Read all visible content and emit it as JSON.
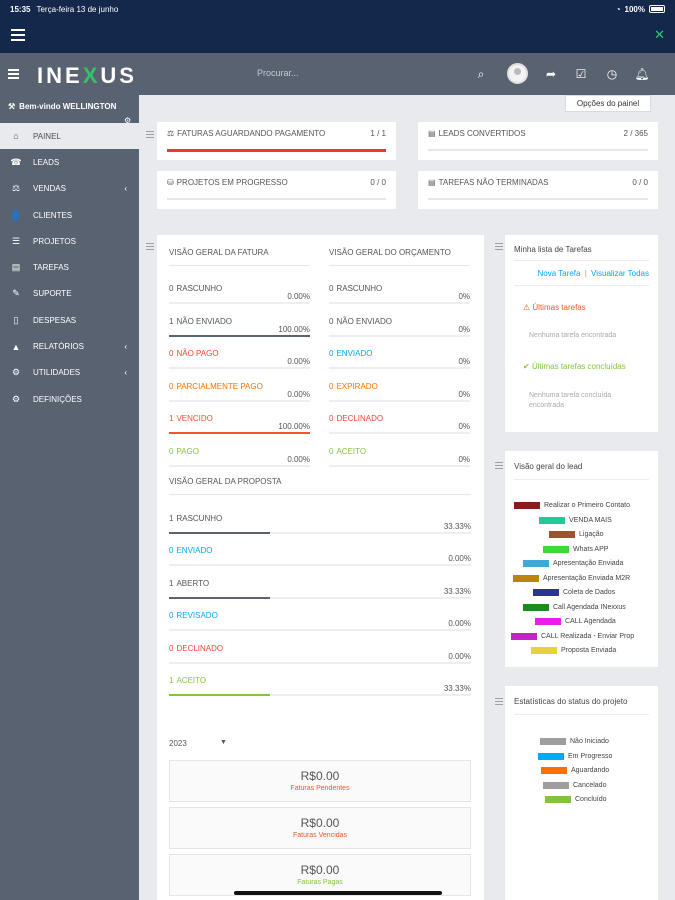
{
  "status_bar": {
    "time": "15:35",
    "date": "Terça-feira 13 de junho",
    "battery": "100%"
  },
  "header": {
    "logo_left": "INE",
    "logo_x": "X",
    "logo_right": "US",
    "search_placeholder": "Procurar..."
  },
  "sidebar": {
    "welcome": "Bem-vindo WELLINGTON",
    "items": [
      {
        "label": "Painel",
        "icon": "home-icon",
        "glyph": "⌂",
        "active": true
      },
      {
        "label": "Leads",
        "icon": "tty-icon",
        "glyph": "☎"
      },
      {
        "label": "Vendas",
        "icon": "balance-scale-icon",
        "glyph": "⚖",
        "chevron": true
      },
      {
        "label": "Clientes",
        "icon": "user-icon",
        "glyph": "👤"
      },
      {
        "label": "Projetos",
        "icon": "bars-icon",
        "glyph": "☰"
      },
      {
        "label": "Tarefas",
        "icon": "tasks-icon",
        "glyph": "▤"
      },
      {
        "label": "Suporte",
        "icon": "ticket-icon",
        "glyph": "✎"
      },
      {
        "label": "Despesas",
        "icon": "file-icon",
        "glyph": "▯"
      },
      {
        "label": "Relatórios",
        "icon": "area-chart-icon",
        "glyph": "▲",
        "chevron": true
      },
      {
        "label": "Utilidades",
        "icon": "cogs-icon",
        "glyph": "⚙",
        "chevron": true
      },
      {
        "label": "Definições",
        "icon": "cog-icon",
        "glyph": "⚙"
      }
    ]
  },
  "panel_options": "Opções do painel",
  "stats": [
    {
      "label": "Faturas aguardando pagamento",
      "value": "1 / 1",
      "fill": 1.0
    },
    {
      "label": "Leads convertidos",
      "value": "2 / 365",
      "fill": 0.0
    },
    {
      "label": "Projetos em progresso",
      "value": "0 / 0",
      "fill": 0.0
    },
    {
      "label": "Tarefas não terminadas",
      "value": "0 / 0",
      "fill": 0.0
    }
  ],
  "invoice_overview": {
    "title": "Visão geral da fatura",
    "rows": [
      {
        "count": "0",
        "label": "Rascunho",
        "pct": "0.00%",
        "fill": 0,
        "color": "#6b7280"
      },
      {
        "count": "1",
        "label": "Não enviado",
        "pct": "100.00%",
        "fill": 1,
        "color": "#5c6370"
      },
      {
        "count": "0",
        "label": "Não pago",
        "pct": "0.00%",
        "fill": 0,
        "color": "#f44336"
      },
      {
        "count": "0",
        "label": "Parcialmente pago",
        "pct": "0.00%",
        "fill": 0,
        "color": "#ff6f00"
      },
      {
        "count": "1",
        "label": "Vencido",
        "pct": "100.00%",
        "fill": 1,
        "color": "#f0562a"
      },
      {
        "count": "0",
        "label": "Pago",
        "pct": "0.00%",
        "fill": 0,
        "color": "#84c341"
      }
    ]
  },
  "estimate_overview": {
    "title": "Visão geral do orçamento",
    "rows": [
      {
        "count": "0",
        "label": "Rascunho",
        "pct": "0%",
        "color": "#6b7280"
      },
      {
        "count": "0",
        "label": "Não enviado",
        "pct": "0%",
        "color": "#5c6370"
      },
      {
        "count": "0",
        "label": "Enviado",
        "pct": "0%",
        "color": "#03a9f4"
      },
      {
        "count": "0",
        "label": "Expirado",
        "pct": "0%",
        "color": "#ff6f00"
      },
      {
        "count": "0",
        "label": "Declinado",
        "pct": "0%",
        "color": "#f44336"
      },
      {
        "count": "0",
        "label": "Aceito",
        "pct": "0%",
        "color": "#84c341"
      }
    ]
  },
  "proposal_overview": {
    "title": "Visão geral da proposta",
    "rows": [
      {
        "count": "1",
        "label": "Rascunho",
        "pct": "33.33%",
        "fill": 0.3333,
        "color": "#5c6370"
      },
      {
        "count": "0",
        "label": "Enviado",
        "pct": "0.00%",
        "fill": 0,
        "color": "#03a9f4"
      },
      {
        "count": "1",
        "label": "Aberto",
        "pct": "33.33%",
        "fill": 0.3333,
        "color": "#5c6370"
      },
      {
        "count": "0",
        "label": "Revisado",
        "pct": "0.00%",
        "fill": 0,
        "color": "#03a9f4"
      },
      {
        "count": "0",
        "label": "Declinado",
        "pct": "0.00%",
        "fill": 0,
        "color": "#f44336"
      },
      {
        "count": "1",
        "label": "Aceito",
        "pct": "33.33%",
        "fill": 0.3333,
        "color": "#84c341"
      }
    ]
  },
  "year_select": "2023",
  "summaries": [
    {
      "amount": "R$0.00",
      "caption": "Faturas Pendentes",
      "color": "#f0562a"
    },
    {
      "amount": "R$0.00",
      "caption": "Faturas Vencidas",
      "color": "#f0562a"
    },
    {
      "amount": "R$0.00",
      "caption": "Faturas Pagas",
      "color": "#84c341"
    }
  ],
  "todo": {
    "title": "Minha lista de Tarefas",
    "new_link": "Nova Tarefa",
    "sep": "|",
    "view_link": "Visualizar Todas",
    "latest_title": "Últimas tarefas",
    "latest_empty": "Nenhuma tarefa encontrada",
    "done_title": "Últimas tarefas concluídas",
    "done_empty": "Nenhuma tarefa concluída encontrada"
  },
  "lead_overview": {
    "title": "Visão geral do lead",
    "items": [
      {
        "label": "Realizar o Primeiro Contato",
        "color": "#8b1a1a"
      },
      {
        "label": "VENDA MAIS",
        "color": "#20c997"
      },
      {
        "label": "Ligação",
        "color": "#a0522d"
      },
      {
        "label": "Whats APP",
        "color": "#3dd63d"
      },
      {
        "label": "Apresentação Enviada",
        "color": "#3fa9d6"
      },
      {
        "label": "Apresentação Enviada M2R",
        "color": "#b8860b"
      },
      {
        "label": "Coleta de Dados",
        "color": "#283593"
      },
      {
        "label": "Call Agendada INexxus",
        "color": "#1e8b1e"
      },
      {
        "label": "CALL Agendada",
        "color": "#e91ee9"
      },
      {
        "label": "CALL Realizada - Enviar Prop",
        "color": "#c026c0"
      },
      {
        "label": "Proposta Enviada",
        "color": "#e6d23c"
      }
    ]
  },
  "project_status": {
    "title": "Estatísticas do status do projeto",
    "items": [
      {
        "label": "Não Iniciado",
        "color": "#9e9e9e"
      },
      {
        "label": "Em Progresso",
        "color": "#03a9f4"
      },
      {
        "label": "Aguardando",
        "color": "#ff6f00"
      },
      {
        "label": "Cancelado",
        "color": "#9e9e9e"
      },
      {
        "label": "Concluído",
        "color": "#84c341"
      }
    ]
  }
}
